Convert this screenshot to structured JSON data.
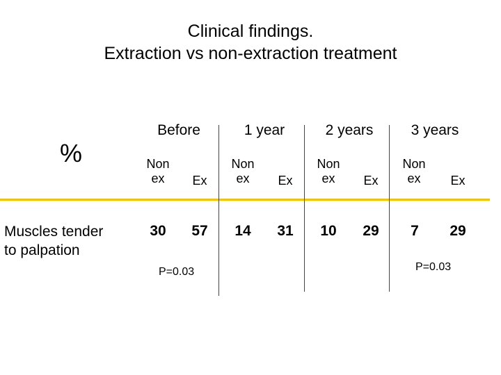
{
  "slide": {
    "title_line1": "Clinical findings.",
    "title_line2": "Extraction vs non-extraction treatment",
    "unit_label": "%",
    "accent_color": "#f5c400"
  },
  "table": {
    "periods": [
      {
        "label": "Before",
        "col1_line1": "Non",
        "col1_line2": "ex",
        "col2": "Ex"
      },
      {
        "label": "1 year",
        "col1_line1": "Non",
        "col1_line2": "ex",
        "col2": "Ex"
      },
      {
        "label": "2 years",
        "col1_line1": "Non",
        "col1_line2": "ex",
        "col2": "Ex"
      },
      {
        "label": "3 years",
        "col1_line1": "Non",
        "col1_line2": "ex",
        "col2": "Ex"
      }
    ],
    "row": {
      "label_line1": "Muscles tender",
      "label_line2": "to palpation",
      "values": [
        "30",
        "57",
        "14",
        "31",
        "10",
        "29",
        "7",
        "29"
      ]
    },
    "p_values": {
      "before": "P=0.03",
      "three_years": "P=0.03"
    }
  }
}
